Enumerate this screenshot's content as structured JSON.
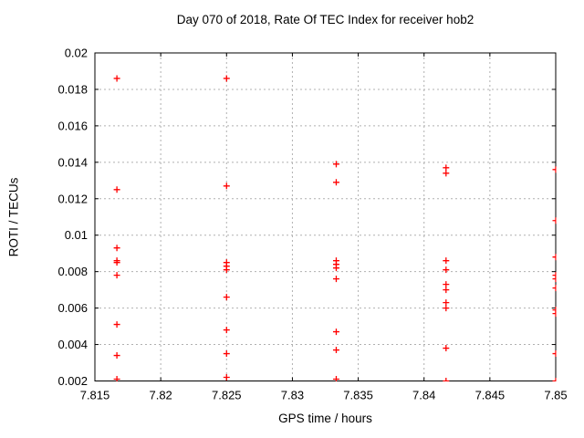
{
  "colors": {
    "background": "#ffffff",
    "marker": "#ff0000",
    "grid": "#b0b0b0",
    "border": "#000000",
    "text": "#000000"
  },
  "chart_data": {
    "type": "scatter",
    "title": "Day 070 of 2018, Rate Of TEC Index for receiver hob2",
    "xlabel": "GPS time / hours",
    "ylabel": "ROTI / TECUs",
    "xlim": [
      7.815,
      7.85
    ],
    "ylim": [
      0.002,
      0.02
    ],
    "x_ticks": [
      7.815,
      7.82,
      7.825,
      7.83,
      7.835,
      7.84,
      7.845,
      7.85
    ],
    "x_tick_labels": [
      "7.815",
      "7.82",
      "7.825",
      "7.83",
      "7.835",
      "7.84",
      "7.845",
      "7.85"
    ],
    "y_ticks": [
      0.002,
      0.004,
      0.006,
      0.008,
      0.01,
      0.012,
      0.014,
      0.016,
      0.018,
      0.02
    ],
    "y_tick_labels": [
      "0.002",
      "0.004",
      "0.006",
      "0.008",
      "0.01",
      "0.012",
      "0.014",
      "0.016",
      "0.018",
      "0.02"
    ],
    "grid": true,
    "legend": "none",
    "marker": {
      "shape": "plus",
      "color": "#ff0000",
      "size": 7
    },
    "series": [
      {
        "name": "ROTI",
        "points": [
          [
            7.81667,
            0.0186
          ],
          [
            7.81667,
            0.0125
          ],
          [
            7.81667,
            0.0093
          ],
          [
            7.81667,
            0.0086
          ],
          [
            7.81667,
            0.0085
          ],
          [
            7.81667,
            0.0078
          ],
          [
            7.81667,
            0.0051
          ],
          [
            7.81667,
            0.0034
          ],
          [
            7.81667,
            0.0021
          ],
          [
            7.825,
            0.0186
          ],
          [
            7.825,
            0.0127
          ],
          [
            7.825,
            0.0085
          ],
          [
            7.825,
            0.0083
          ],
          [
            7.825,
            0.0081
          ],
          [
            7.825,
            0.0066
          ],
          [
            7.825,
            0.0048
          ],
          [
            7.825,
            0.0035
          ],
          [
            7.825,
            0.0022
          ],
          [
            7.83333,
            0.0139
          ],
          [
            7.83333,
            0.0129
          ],
          [
            7.83333,
            0.0086
          ],
          [
            7.83333,
            0.0084
          ],
          [
            7.83333,
            0.0082
          ],
          [
            7.83333,
            0.0076
          ],
          [
            7.83333,
            0.0047
          ],
          [
            7.83333,
            0.0037
          ],
          [
            7.83333,
            0.0021
          ],
          [
            7.84167,
            0.0137
          ],
          [
            7.84167,
            0.0134
          ],
          [
            7.84167,
            0.0086
          ],
          [
            7.84167,
            0.0081
          ],
          [
            7.84167,
            0.0073
          ],
          [
            7.84167,
            0.007
          ],
          [
            7.84167,
            0.0063
          ],
          [
            7.84167,
            0.006
          ],
          [
            7.84167,
            0.0038
          ],
          [
            7.84167,
            0.002
          ],
          [
            7.85,
            0.0136
          ],
          [
            7.85,
            0.0108
          ],
          [
            7.85,
            0.0088
          ],
          [
            7.85,
            0.0078
          ],
          [
            7.85,
            0.0076
          ],
          [
            7.85,
            0.0071
          ],
          [
            7.85,
            0.0059
          ],
          [
            7.85,
            0.0057
          ],
          [
            7.85,
            0.0035
          ],
          [
            7.85,
            0.002
          ]
        ]
      }
    ]
  }
}
